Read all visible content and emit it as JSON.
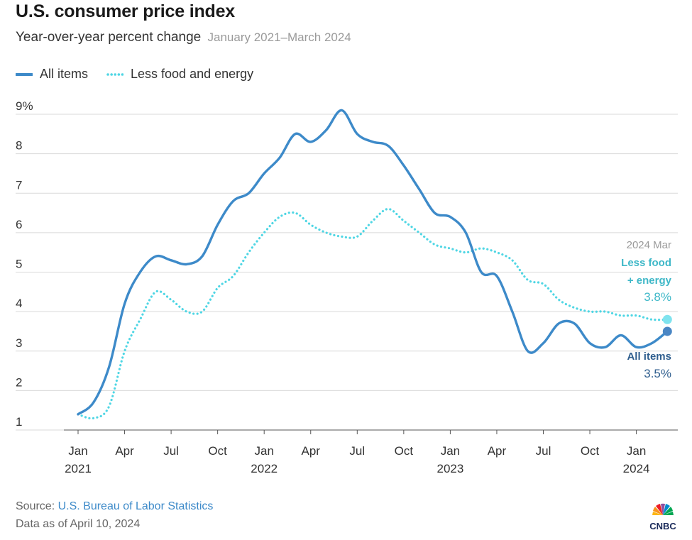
{
  "header": {
    "title": "U.S. consumer price index",
    "subtitle": "Year-over-year percent change",
    "subtitle_range": "January 2021–March 2024"
  },
  "legend": {
    "all_items": "All items",
    "core": "Less food and energy"
  },
  "annotations": {
    "date": "2024 Mar",
    "core_label_1": "Less food",
    "core_label_2": "+ energy",
    "core_value": "3.8%",
    "all_label": "All items",
    "all_value": "3.5%"
  },
  "footer": {
    "source_prefix": "Source: ",
    "source_name": "U.S. Bureau of Labor Statistics",
    "data_as_of": "Data as of April 10, 2024",
    "logo_text": "CNBC"
  },
  "colors": {
    "all_items": "#3d8ac9",
    "core": "#4fd6e4",
    "all_marker": "#4a86c4",
    "all_annotation": "#2f5e8e",
    "core_annotation": "#3fb8c8",
    "grid": "#d9d9d9"
  },
  "chart_data": {
    "type": "line",
    "title": "U.S. consumer price index",
    "subtitle": "Year-over-year percent change",
    "ylim": [
      1,
      9
    ],
    "y_ticks": [
      "9%",
      "8",
      "7",
      "6",
      "5",
      "4",
      "3",
      "2",
      "1"
    ],
    "y_tick_values": [
      9,
      8,
      7,
      6,
      5,
      4,
      3,
      2,
      1
    ],
    "x_ticks": [
      {
        "month": "Jan",
        "year": "2021",
        "index": 0
      },
      {
        "month": "Apr",
        "year": "",
        "index": 3
      },
      {
        "month": "Jul",
        "year": "",
        "index": 6
      },
      {
        "month": "Oct",
        "year": "",
        "index": 9
      },
      {
        "month": "Jan",
        "year": "2022",
        "index": 12
      },
      {
        "month": "Apr",
        "year": "",
        "index": 15
      },
      {
        "month": "Jul",
        "year": "",
        "index": 18
      },
      {
        "month": "Oct",
        "year": "",
        "index": 21
      },
      {
        "month": "Jan",
        "year": "2023",
        "index": 24
      },
      {
        "month": "Apr",
        "year": "",
        "index": 27
      },
      {
        "month": "Jul",
        "year": "",
        "index": 30
      },
      {
        "month": "Oct",
        "year": "",
        "index": 33
      },
      {
        "month": "Jan",
        "year": "2024",
        "index": 36
      }
    ],
    "x": [
      "2021-01",
      "2021-02",
      "2021-03",
      "2021-04",
      "2021-05",
      "2021-06",
      "2021-07",
      "2021-08",
      "2021-09",
      "2021-10",
      "2021-11",
      "2021-12",
      "2022-01",
      "2022-02",
      "2022-03",
      "2022-04",
      "2022-05",
      "2022-06",
      "2022-07",
      "2022-08",
      "2022-09",
      "2022-10",
      "2022-11",
      "2022-12",
      "2023-01",
      "2023-02",
      "2023-03",
      "2023-04",
      "2023-05",
      "2023-06",
      "2023-07",
      "2023-08",
      "2023-09",
      "2023-10",
      "2023-11",
      "2023-12",
      "2024-01",
      "2024-02",
      "2024-03"
    ],
    "series": [
      {
        "name": "All items",
        "style": "solid",
        "values": [
          1.4,
          1.7,
          2.6,
          4.2,
          5.0,
          5.4,
          5.3,
          5.2,
          5.4,
          6.2,
          6.8,
          7.0,
          7.5,
          7.9,
          8.5,
          8.3,
          8.6,
          9.1,
          8.5,
          8.3,
          8.2,
          7.7,
          7.1,
          6.5,
          6.4,
          6.0,
          5.0,
          4.9,
          4.0,
          3.0,
          3.2,
          3.7,
          3.7,
          3.2,
          3.1,
          3.4,
          3.1,
          3.2,
          3.5
        ]
      },
      {
        "name": "Less food and energy",
        "style": "dotted",
        "values": [
          1.4,
          1.3,
          1.6,
          3.0,
          3.8,
          4.5,
          4.3,
          4.0,
          4.0,
          4.6,
          4.9,
          5.5,
          6.0,
          6.4,
          6.5,
          6.2,
          6.0,
          5.9,
          5.9,
          6.3,
          6.6,
          6.3,
          6.0,
          5.7,
          5.6,
          5.5,
          5.6,
          5.5,
          5.3,
          4.8,
          4.7,
          4.3,
          4.1,
          4.0,
          4.0,
          3.9,
          3.9,
          3.8,
          3.8
        ]
      }
    ]
  }
}
